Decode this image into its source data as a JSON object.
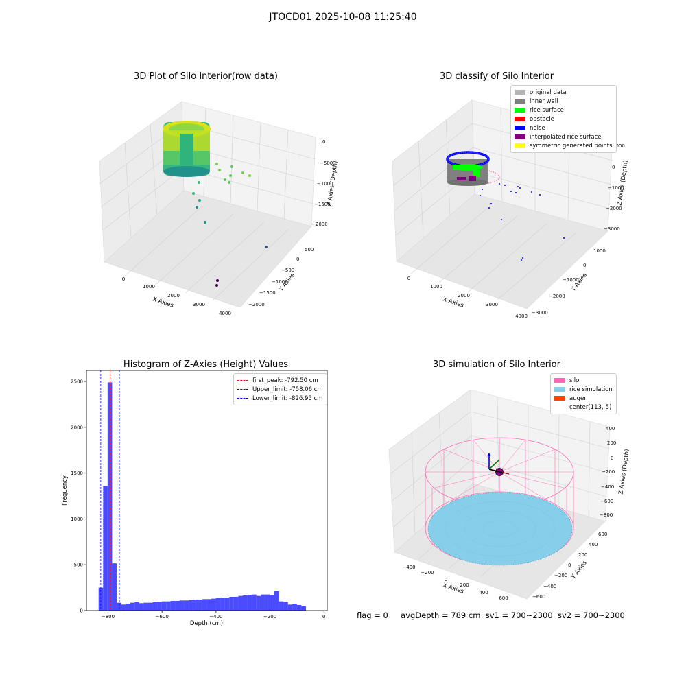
{
  "suptitle": "JTOCD01 2025-10-08 11:25:40",
  "panels": {
    "raw": {
      "title": "3D Plot of Silo Interior(row data)",
      "xlabel": "X Axies",
      "ylabel": "Y Axies",
      "zlabel": "Z Axies (Depth)",
      "xticks": [
        "0",
        "1000",
        "2000",
        "3000",
        "4000"
      ],
      "yticks": [
        "500",
        "0",
        "−500",
        "−1000",
        "−1500",
        "−2000"
      ],
      "zticks": [
        "0",
        "−500",
        "−1000",
        "−1500",
        "−2000"
      ]
    },
    "classify": {
      "title": "3D classify of Silo Interior",
      "xlabel": "X Axies",
      "ylabel": "Y Axies",
      "zlabel": "Z Axies (Depth)",
      "xticks": [
        "0",
        "1000",
        "2000",
        "3000",
        "4000"
      ],
      "yticks": [
        "1000",
        "0",
        "−1000",
        "−2000",
        "−3000"
      ],
      "zticks": [
        "1000",
        "0",
        "−1000",
        "−2000",
        "−3000"
      ],
      "legend": [
        {
          "label": "original data",
          "color": "#b3b3b3"
        },
        {
          "label": "inner wall",
          "color": "#808080"
        },
        {
          "label": "rice surface",
          "color": "#00ff00"
        },
        {
          "label": "obstacle",
          "color": "#ff0000"
        },
        {
          "label": "noise",
          "color": "#0000ff"
        },
        {
          "label": "interpolated rice surface",
          "color": "#800080"
        },
        {
          "label": "symmetric generated points",
          "color": "#ffff00"
        }
      ]
    },
    "simulation": {
      "title": "3D simulation of Silo Interior",
      "xlabel": "X Axies",
      "ylabel": "Y Axies",
      "zlabel": "Z Axies (Depth)",
      "xticks": [
        "−400",
        "−200",
        "0",
        "200",
        "400",
        "600"
      ],
      "yticks": [
        "600",
        "400",
        "200",
        "0",
        "−200",
        "−400",
        "−600"
      ],
      "zticks": [
        "400",
        "200",
        "0",
        "−200",
        "−400",
        "−600",
        "−800"
      ],
      "legend": [
        {
          "label": "silo",
          "color": "#ff69b4"
        },
        {
          "label": "rice simulation",
          "color": "#87ceeb"
        },
        {
          "label": "auger",
          "color": "#ff4500"
        },
        {
          "label": "center(113,-5)",
          "color": "#ffffff"
        }
      ]
    }
  },
  "footer": {
    "flag": "flag = 0",
    "avg": "avgDepth = 789 cm",
    "sv1": "sv1 = 700~2300",
    "sv2": "sv2 = 700~2300"
  },
  "chart_data": [
    {
      "type": "bar",
      "title": "Histogram of Z-Axies (Height) Values",
      "xlabel": "Depth (cm)",
      "ylabel": "Frequency",
      "xlim": [
        -880,
        12
      ],
      "ylim": [
        0,
        2620
      ],
      "xticks": [
        -800,
        -600,
        -400,
        -200,
        0
      ],
      "yticks": [
        0,
        500,
        1000,
        1500,
        2000,
        2500
      ],
      "bar_color": "#0000ff",
      "bin_start": -835,
      "bin_width": 16.7,
      "values": [
        250,
        1360,
        2490,
        515,
        85,
        65,
        75,
        85,
        90,
        80,
        85,
        85,
        90,
        95,
        100,
        100,
        105,
        105,
        110,
        110,
        115,
        120,
        120,
        125,
        125,
        130,
        135,
        140,
        140,
        150,
        150,
        160,
        165,
        170,
        175,
        160,
        175,
        175,
        165,
        210,
        100,
        95,
        65,
        75,
        60,
        45
      ],
      "lines": [
        {
          "label": "first_peak: -792.50 cm",
          "x": -792.5,
          "color": "#ff0000"
        },
        {
          "label": "Upper_limit: -758.06 cm",
          "x": -758.06,
          "color": "#0000ff"
        },
        {
          "label": "Lower_limit: -826.95 cm",
          "x": -826.95,
          "color": "#0000ff"
        }
      ]
    }
  ]
}
